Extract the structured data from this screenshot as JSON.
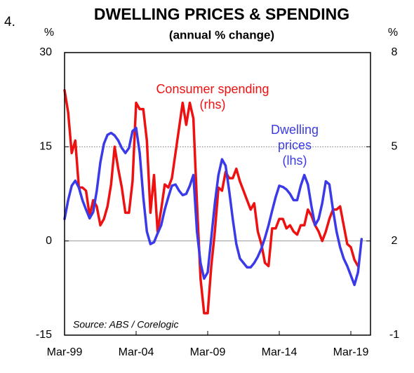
{
  "chart_data": {
    "type": "line",
    "number": "4.",
    "title": "DWELLING PRICES & SPENDING",
    "subtitle": "(annual % change)",
    "y_unit": "%",
    "y2_unit": "%",
    "source": "Source: ABS / Corelogic",
    "categories": [
      "Mar-99",
      null,
      null,
      null,
      null,
      null,
      null,
      null,
      null,
      null,
      null,
      null,
      null,
      null,
      null,
      null,
      null,
      null,
      null,
      null,
      "Mar-04",
      null,
      null,
      null,
      null,
      null,
      null,
      null,
      null,
      null,
      null,
      null,
      null,
      null,
      null,
      null,
      null,
      null,
      null,
      null,
      "Mar-09",
      null,
      null,
      null,
      null,
      null,
      null,
      null,
      null,
      null,
      null,
      null,
      null,
      null,
      null,
      null,
      null,
      null,
      null,
      null,
      "Mar-14",
      null,
      null,
      null,
      null,
      null,
      null,
      null,
      null,
      null,
      null,
      null,
      null,
      null,
      null,
      null,
      null,
      null,
      null,
      null,
      "Mar-19",
      null,
      null,
      null
    ],
    "ylim": [
      -15,
      30
    ],
    "yticks": [
      -15,
      0,
      15,
      30
    ],
    "y2lim": [
      -1,
      8
    ],
    "y2ticks": [
      -1,
      2,
      5,
      8
    ],
    "grid": true,
    "series": [
      {
        "name": "Dwelling prices (lhs)",
        "label_lines": [
          "Dwelling",
          "prices",
          "(lhs)"
        ],
        "color": "#3a3ae8",
        "axis": "y",
        "values": [
          3.5,
          6.5,
          8.8,
          9.6,
          8.5,
          6.5,
          5.0,
          3.6,
          4.6,
          8.0,
          12.5,
          15.5,
          16.9,
          17.2,
          16.8,
          16.0,
          14.8,
          14.0,
          14.8,
          17.5,
          18.0,
          14.0,
          7.0,
          1.5,
          -0.5,
          -0.2,
          1.2,
          2.5,
          5.0,
          7.0,
          8.8,
          9.0,
          8.0,
          7.3,
          7.5,
          8.8,
          10.5,
          1.5,
          -3.5,
          -6.0,
          -5.0,
          0.5,
          6.0,
          10.5,
          13.0,
          12.0,
          8.0,
          3.5,
          -0.5,
          -2.8,
          -3.5,
          -4.2,
          -4.2,
          -3.5,
          -2.5,
          -1.2,
          0.5,
          2.5,
          4.8,
          7.0,
          8.8,
          8.6,
          8.2,
          7.5,
          6.5,
          6.5,
          8.8,
          10.5,
          9.0,
          5.5,
          2.5,
          3.5,
          6.0,
          9.5,
          9.0,
          5.0,
          1.5,
          -1.0,
          -2.8,
          -4.0,
          -5.5,
          -7.0,
          -5.0,
          0.3
        ]
      },
      {
        "name": "Consumer spending (rhs)",
        "label_lines": [
          "Consumer spending",
          "(rhs)"
        ],
        "color": "#ee1111",
        "axis": "y2",
        "values": [
          6.8,
          6.1,
          4.8,
          5.2,
          3.7,
          3.7,
          3.6,
          2.8,
          3.3,
          3.1,
          2.5,
          2.7,
          3.1,
          3.8,
          5.0,
          4.3,
          3.7,
          2.9,
          2.9,
          3.9,
          6.4,
          6.2,
          6.2,
          5.2,
          2.9,
          4.1,
          2.3,
          3.0,
          3.8,
          3.7,
          4.0,
          4.8,
          5.6,
          6.4,
          5.7,
          6.4,
          5.9,
          3.2,
          0.8,
          -0.3,
          -0.3,
          1.2,
          2.3,
          3.7,
          3.6,
          4.2,
          4.0,
          4.0,
          4.3,
          3.9,
          3.6,
          3.3,
          3.0,
          3.2,
          2.3,
          1.9,
          1.3,
          1.2,
          2.4,
          2.4,
          2.7,
          2.7,
          2.4,
          2.5,
          2.3,
          2.2,
          2.5,
          2.5,
          3.0,
          2.8,
          2.5,
          2.3,
          2.0,
          2.3,
          2.7,
          3.0,
          3.0,
          3.1,
          2.5,
          1.9,
          1.8,
          1.4,
          1.2,
          null
        ]
      }
    ]
  }
}
